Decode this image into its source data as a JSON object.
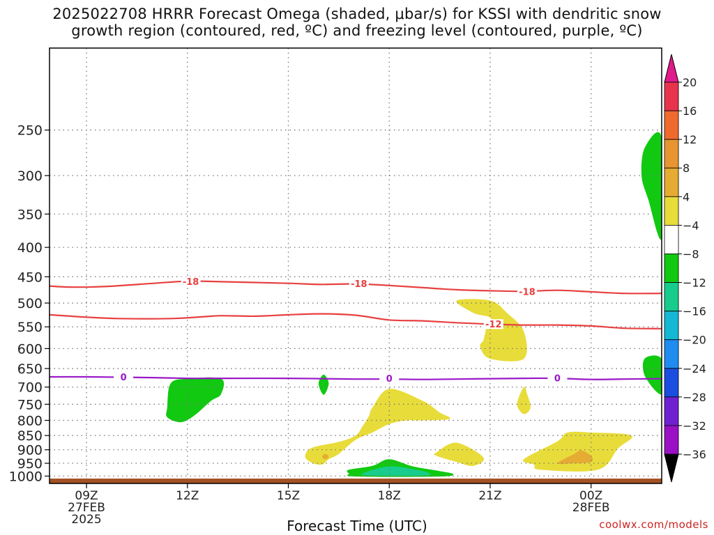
{
  "title_line1": "2025022708 HRRR Forecast Omega (shaded, μbar/s) for KSSI with dendritic snow",
  "title_line2": "growth region (contoured, red, ºC) and freezing level (contoured, purple, ºC)",
  "xlabel": "Forecast Time (UTC)",
  "source": "coolwx.com/models",
  "chart_data": {
    "type": "heatmap",
    "x_axis": {
      "range_hours": [
        7.9,
        26.1
      ],
      "ticks": [
        {
          "hour": 9,
          "labels": [
            "09Z",
            "27FEB",
            "2025"
          ]
        },
        {
          "hour": 12,
          "labels": [
            "12Z"
          ]
        },
        {
          "hour": 15,
          "labels": [
            "15Z"
          ]
        },
        {
          "hour": 18,
          "labels": [
            "18Z"
          ]
        },
        {
          "hour": 21,
          "labels": [
            "21Z"
          ]
        },
        {
          "hour": 24,
          "labels": [
            "00Z",
            "28FEB"
          ]
        }
      ]
    },
    "y_axis": {
      "quantity": "pressure (hPa)",
      "range": [
        1030,
        180
      ],
      "ticks": [
        250,
        300,
        350,
        400,
        450,
        500,
        550,
        600,
        650,
        700,
        750,
        800,
        850,
        900,
        950,
        1000
      ]
    },
    "colorbar": {
      "boundaries": [
        20,
        16,
        12,
        8,
        4,
        -4,
        -8,
        -12,
        -16,
        -20,
        -24,
        -28,
        -32,
        -36
      ],
      "colors": [
        "#e8334d",
        "#f06a2e",
        "#e79530",
        "#e5ab33",
        "#e8dc3a",
        "#ffffff",
        "#11c911",
        "#17cc8c",
        "#14b8d4",
        "#1e8cf0",
        "#1a4ee0",
        "#7020d0",
        "#9a10c4",
        "#9a9a9a"
      ],
      "top_arrow_color": "#e01a8c",
      "bottom_arrow_color": "#000000"
    },
    "contours": [
      {
        "name": "-18",
        "color": "#e84040",
        "points": [
          [
            7.9,
            467
          ],
          [
            8.5,
            469
          ],
          [
            9.5,
            468
          ],
          [
            11,
            462
          ],
          [
            12,
            458
          ],
          [
            13,
            459
          ],
          [
            15,
            462
          ],
          [
            16,
            464
          ],
          [
            17,
            463
          ],
          [
            18,
            466
          ],
          [
            19,
            470
          ],
          [
            20,
            474
          ],
          [
            21,
            476
          ],
          [
            22,
            477
          ],
          [
            23,
            475
          ],
          [
            24,
            478
          ],
          [
            25,
            481
          ],
          [
            26.1,
            481
          ]
        ],
        "labels": [
          {
            "hour": 12.1,
            "p": 459
          },
          {
            "hour": 17.1,
            "p": 463
          },
          {
            "hour": 22.1,
            "p": 478
          }
        ]
      },
      {
        "name": "-12",
        "color": "#e84040",
        "points": [
          [
            7.9,
            524
          ],
          [
            9,
            529
          ],
          [
            10,
            532
          ],
          [
            11.5,
            532
          ],
          [
            12.5,
            528
          ],
          [
            13,
            526
          ],
          [
            14,
            527
          ],
          [
            15,
            524
          ],
          [
            16,
            522
          ],
          [
            17,
            525
          ],
          [
            18,
            535
          ],
          [
            19,
            537
          ],
          [
            20,
            541
          ],
          [
            21,
            544
          ],
          [
            22,
            546
          ],
          [
            23,
            546
          ],
          [
            24,
            548
          ],
          [
            25,
            553
          ],
          [
            26.1,
            554
          ]
        ],
        "labels": [
          {
            "hour": 21.1,
            "p": 544
          }
        ]
      },
      {
        "name": "0",
        "color": "#9a18c8",
        "points": [
          [
            7.9,
            672
          ],
          [
            9,
            672
          ],
          [
            10,
            673
          ],
          [
            11,
            674
          ],
          [
            12,
            676
          ],
          [
            13,
            676
          ],
          [
            15,
            676
          ],
          [
            16,
            677
          ],
          [
            17,
            678
          ],
          [
            18,
            678
          ],
          [
            19,
            679
          ],
          [
            20,
            678
          ],
          [
            21,
            677
          ],
          [
            22,
            676
          ],
          [
            23,
            676
          ],
          [
            24,
            679
          ],
          [
            25,
            678
          ],
          [
            26.1,
            677
          ]
        ],
        "labels": [
          {
            "hour": 10.1,
            "p": 673
          },
          {
            "hour": 18.0,
            "p": 677
          },
          {
            "hour": 23.0,
            "p": 676
          }
        ]
      }
    ],
    "shaded_regions": [
      {
        "color": "#11c911",
        "points": [
          [
            26.1,
            258
          ],
          [
            25.6,
            268
          ],
          [
            25.5,
            300
          ],
          [
            25.7,
            330
          ],
          [
            26.1,
            385
          ]
        ]
      },
      {
        "color": "#11c911",
        "points": [
          [
            26.1,
            626
          ],
          [
            25.6,
            624
          ],
          [
            25.6,
            670
          ],
          [
            26.1,
            720
          ]
        ]
      },
      {
        "color": "#11c911",
        "points": [
          [
            11.5,
            690
          ],
          [
            12,
            677
          ],
          [
            13,
            677
          ],
          [
            13,
            720
          ],
          [
            12.7,
            740
          ],
          [
            12.2,
            785
          ],
          [
            11.8,
            806
          ],
          [
            11.4,
            790
          ],
          [
            11.4,
            760
          ]
        ]
      },
      {
        "color": "#11c911",
        "points": [
          [
            15.9,
            690
          ],
          [
            16.05,
            666
          ],
          [
            16.2,
            690
          ],
          [
            16.05,
            722
          ]
        ]
      },
      {
        "color": "#11c911",
        "points": [
          [
            16.8,
            975
          ],
          [
            17.5,
            960
          ],
          [
            18,
            935
          ],
          [
            18.7,
            962
          ],
          [
            19.5,
            980
          ],
          [
            19.9,
            992
          ],
          [
            19.5,
            1002
          ],
          [
            17,
            1002
          ],
          [
            16.8,
            990
          ]
        ]
      },
      {
        "color": "#17cc8c",
        "points": [
          [
            17.2,
            990
          ],
          [
            18,
            962
          ],
          [
            18.8,
            975
          ],
          [
            19.2,
            990
          ],
          [
            19,
            998
          ],
          [
            17.5,
            998
          ]
        ]
      },
      {
        "color": "#e8dc3a",
        "points": [
          [
            20,
            495
          ],
          [
            20.5,
            520
          ],
          [
            21,
            530
          ],
          [
            20.9,
            548
          ],
          [
            20.8,
            580
          ],
          [
            20.7,
            595
          ],
          [
            21,
            625
          ],
          [
            22,
            625
          ],
          [
            22,
            560
          ],
          [
            21.5,
            520
          ],
          [
            21,
            495
          ]
        ]
      },
      {
        "color": "#e8dc3a",
        "points": [
          [
            22,
            700
          ],
          [
            22.1,
            720
          ],
          [
            22.2,
            760
          ],
          [
            22,
            780
          ],
          [
            21.8,
            750
          ]
        ]
      },
      {
        "color": "#e8dc3a",
        "points": [
          [
            17.5,
            760
          ],
          [
            18,
            705
          ],
          [
            19,
            740
          ],
          [
            19.5,
            775
          ],
          [
            19.8,
            795
          ],
          [
            19,
            800
          ],
          [
            18.5,
            800
          ],
          [
            18,
            812
          ],
          [
            17.5,
            840
          ],
          [
            17,
            865
          ],
          [
            16.5,
            915
          ],
          [
            16.2,
            935
          ],
          [
            16,
            955
          ],
          [
            15.7,
            948
          ],
          [
            15.5,
            925
          ],
          [
            15.7,
            893
          ],
          [
            16.5,
            872
          ],
          [
            17,
            850
          ],
          [
            17.2,
            820
          ],
          [
            17.4,
            785
          ]
        ]
      },
      {
        "color": "#e8dc3a",
        "points": [
          [
            19.4,
            910
          ],
          [
            20,
            875
          ],
          [
            20.8,
            928
          ],
          [
            20.5,
            960
          ],
          [
            20,
            945
          ],
          [
            19.4,
            922
          ]
        ]
      },
      {
        "color": "#e8dc3a",
        "points": [
          [
            22,
            935
          ],
          [
            23,
            870
          ],
          [
            23.3,
            840
          ],
          [
            24,
            840
          ],
          [
            25.2,
            850
          ],
          [
            24.8,
            895
          ],
          [
            24.2,
            975
          ],
          [
            22.5,
            975
          ],
          [
            22.3,
            955
          ]
        ]
      },
      {
        "color": "#e5ab33",
        "points": [
          [
            23,
            950
          ],
          [
            23.5,
            915
          ],
          [
            23.7,
            902
          ],
          [
            24,
            922
          ],
          [
            24,
            945
          ],
          [
            23.5,
            950
          ]
        ]
      },
      {
        "color": "#e5ab33",
        "points": [
          [
            16,
            925
          ],
          [
            16.1,
            915
          ],
          [
            16.2,
            925
          ],
          [
            16.1,
            935
          ]
        ]
      }
    ],
    "ground": {
      "color": "#a45225",
      "from_pressure": 1010
    }
  }
}
